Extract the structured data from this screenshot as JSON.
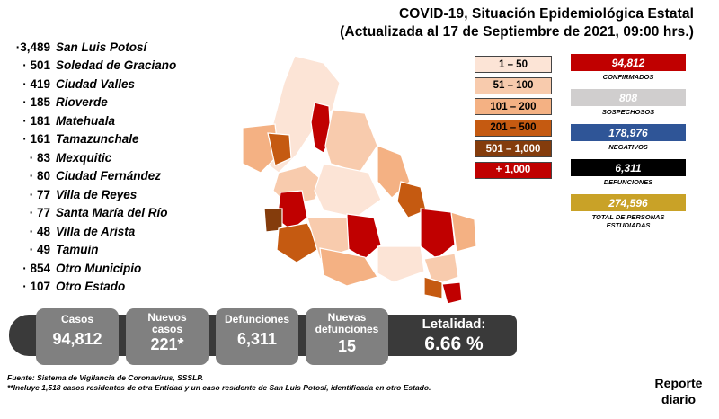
{
  "header": {
    "title_line1": "COVID-19, Situación Epidemiológica Estatal",
    "title_line2": "(Actualizada al 17 de Septiembre de 2021, 09:00 hrs.)"
  },
  "municipalities": [
    {
      "count": "·3,489",
      "name": "San Luis Potosí"
    },
    {
      "count": "· 501",
      "name": "Soledad de Graciano"
    },
    {
      "count": "· 419",
      "name": "Ciudad Valles"
    },
    {
      "count": "· 185",
      "name": "Rioverde"
    },
    {
      "count": "· 181",
      "name": "Matehuala"
    },
    {
      "count": "· 161",
      "name": "Tamazunchale"
    },
    {
      "count": "· 83",
      "name": "Mexquitic"
    },
    {
      "count": "· 80",
      "name": "Ciudad Fernández"
    },
    {
      "count": "· 77",
      "name": "Villa de Reyes"
    },
    {
      "count": "· 77",
      "name": "Santa María del Río"
    },
    {
      "count": "· 48",
      "name": "Villa de Arista"
    },
    {
      "count": "· 49",
      "name": "Tamuin"
    },
    {
      "count": "· 854",
      "name": "Otro Municipio"
    },
    {
      "count": "· 107",
      "name": "Otro Estado"
    }
  ],
  "legend": [
    {
      "label": "1 – 50",
      "color": "#FCE4D6",
      "text_color": "#000000"
    },
    {
      "label": "51 – 100",
      "color": "#F8CBAD",
      "text_color": "#000000"
    },
    {
      "label": "101 – 200",
      "color": "#F4B183",
      "text_color": "#000000"
    },
    {
      "label": "201 – 500",
      "color": "#C55A11",
      "text_color": "#000000"
    },
    {
      "label": "501 – 1,000",
      "color": "#843C0C",
      "text_color": "#FFFFFF"
    },
    {
      "label": "+ 1,000",
      "color": "#C00000",
      "text_color": "#FFFFFF"
    }
  ],
  "stats": [
    {
      "value": "94,812",
      "label": "CONFIRMADOS",
      "color": "#C00000",
      "text_color": "#FFFFFF"
    },
    {
      "value": "808",
      "label": "SOSPECHOSOS",
      "color": "#D0CECE",
      "text_color": "#FFFFFF"
    },
    {
      "value": "178,976",
      "label": "NEGATIVOS",
      "color": "#2F5597",
      "text_color": "#FFFFFF"
    },
    {
      "value": "6,311",
      "label": "DEFUNCIONES",
      "color": "#000000",
      "text_color": "#FFFFFF"
    },
    {
      "value": "274,596",
      "label": "TOTAL DE PERSONAS ESTUDIADAS",
      "color": "#C9A227",
      "text_color": "#FFFFFF"
    }
  ],
  "summary": {
    "casos_label": "Casos",
    "casos_value": "94,812",
    "nuevos_label": "Nuevos casos",
    "nuevos_value": "221*",
    "defunciones_label": "Defunciones",
    "defunciones_value": "6,311",
    "nuevas_def_label": "Nuevas defunciones",
    "nuevas_def_value": "15",
    "letalidad_label": "Letalidad:",
    "letalidad_value": "6.66 %"
  },
  "footer": {
    "source": "Fuente: Sistema de Vigilancia de Coronavirus, SSSLP.",
    "note": "**Incluye 1,518 casos residentes de otra Entidad y un caso residente de San Luis Potosí, identificada en otro Estado.",
    "report": "Reporte diario"
  }
}
